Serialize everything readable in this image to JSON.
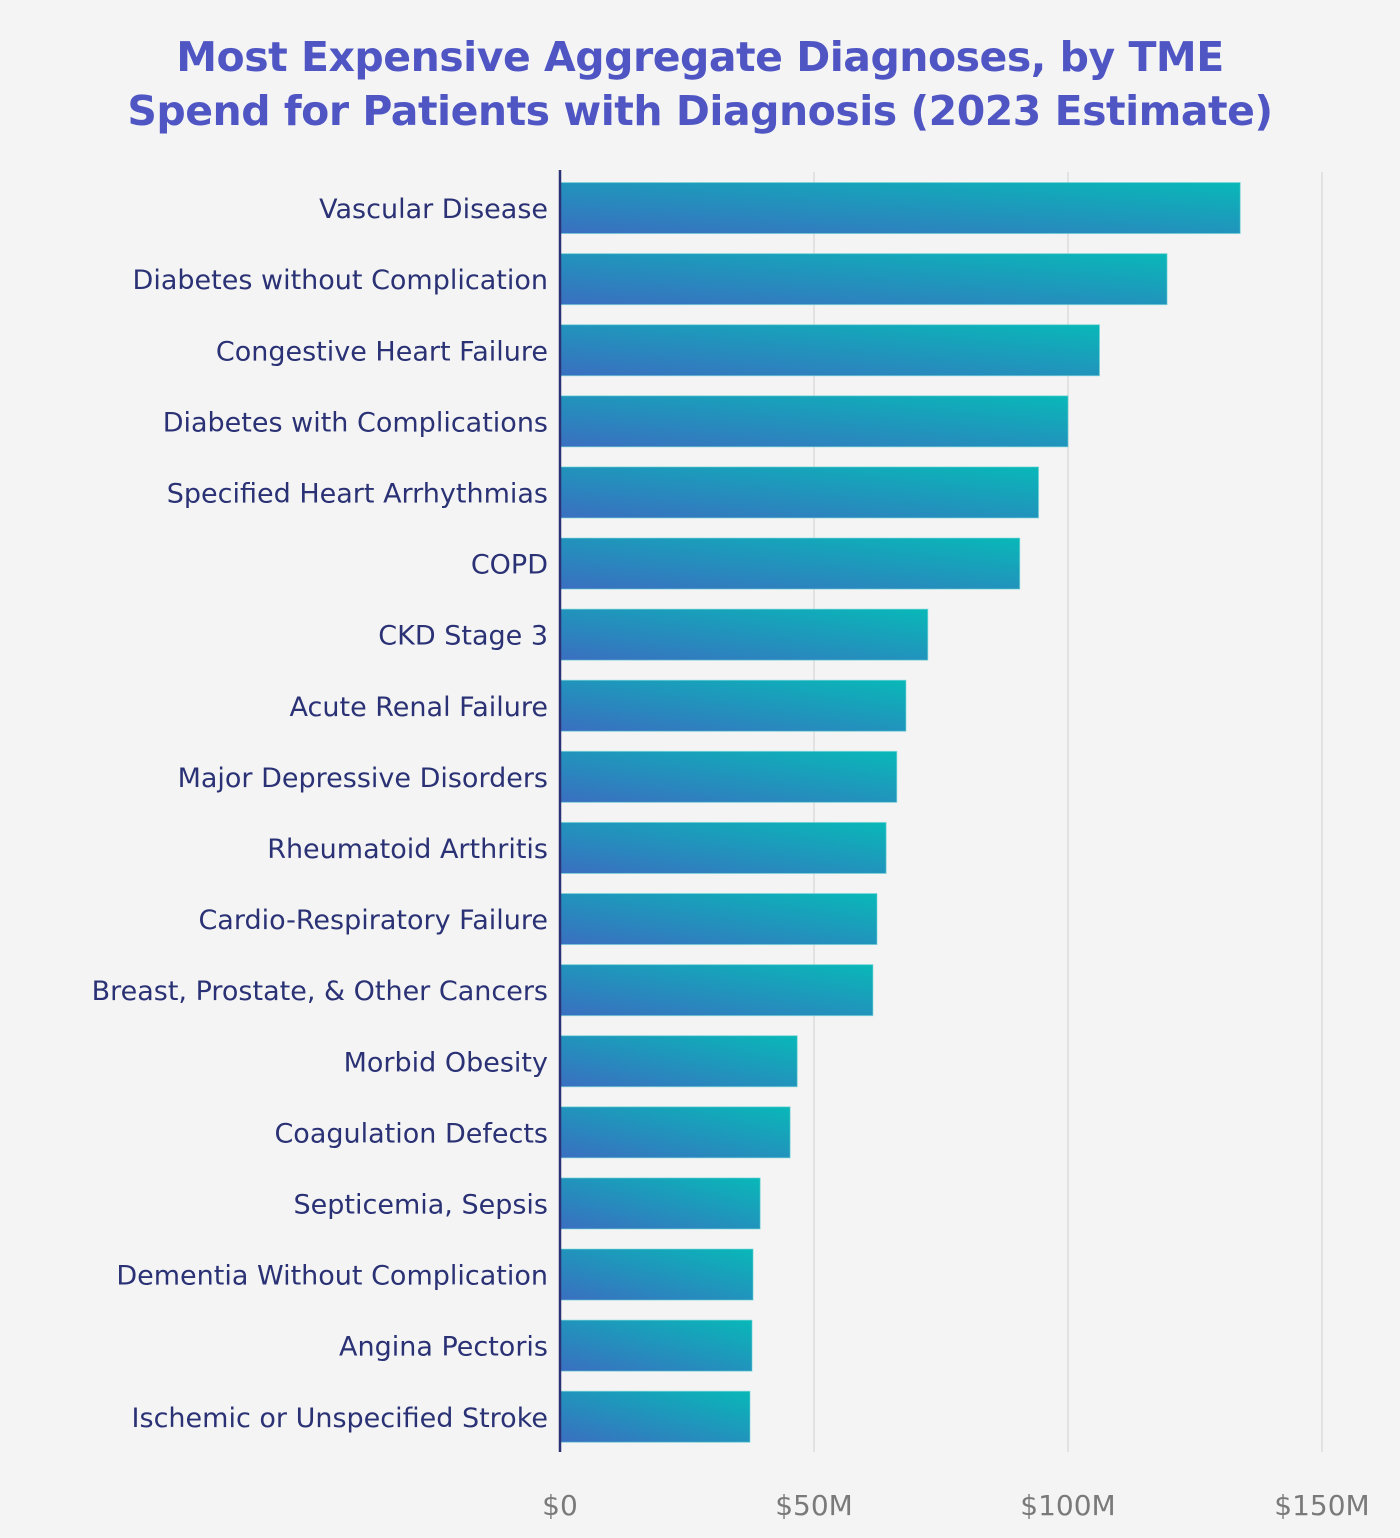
{
  "chart_data": {
    "type": "bar",
    "orientation": "horizontal",
    "title": "Most Expensive Aggregate Diagnoses, by TME Spend for Patients with Diagnosis (2023 Estimate)",
    "title_lines": [
      "Most Expensive Aggregate Diagnoses, by TME",
      "Spend for Patients with Diagnosis (2023 Estimate)"
    ],
    "xlabel": "",
    "ylabel": "",
    "unit": "USD millions",
    "xlim": [
      0,
      150
    ],
    "x_ticks": [
      0,
      50,
      100,
      150
    ],
    "x_tick_labels": [
      "$0",
      "$50M",
      "$100M",
      "$150M"
    ],
    "grid": "vertical",
    "legend": "none",
    "categories": [
      "Vascular Disease",
      "Diabetes without Complication",
      "Congestive Heart Failure",
      "Diabetes with Complications",
      "Specified Heart Arrhythmias",
      "COPD",
      "CKD Stage 3",
      "Acute Renal Failure",
      "Major Depressive Disorders",
      "Rheumatoid Arthritis ",
      "Cardio-Respiratory Failure",
      "Breast, Prostate, & Other Cancers",
      "Morbid Obesity",
      "Coagulation Defects",
      "Septicemia, Sepsis",
      "Dementia Without Complication",
      "Angina Pectoris",
      "Ischemic or Unspecified Stroke"
    ],
    "values": [
      133.9,
      119.5,
      106.2,
      100.0,
      94.2,
      90.5,
      72.4,
      68.1,
      66.3,
      64.2,
      62.4,
      61.6,
      46.7,
      45.3,
      39.4,
      38.0,
      37.8,
      37.4
    ],
    "colors": {
      "bar_gradient_start": "#3a6fc0",
      "bar_gradient_end": "#08b8b8",
      "title": "#4f56c4",
      "category_label": "#2a3275",
      "axis_line": "#2a3275",
      "tick_label": "#7a7a7a",
      "grid": "#e2e2e2",
      "background": "#f4f4f4"
    }
  }
}
